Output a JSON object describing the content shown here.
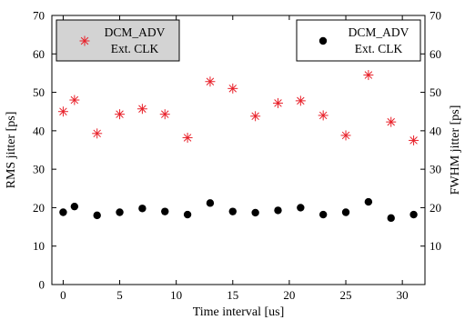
{
  "chart_data": {
    "type": "scatter",
    "xlabel": "Time interval [us]",
    "ylabel_left": "RMS jitter [ps]",
    "ylabel_right": "FWHM jitter [ps]",
    "xlim": [
      -1,
      32
    ],
    "ylim": [
      0,
      70
    ],
    "xticks": [
      0,
      5,
      10,
      15,
      20,
      25,
      30
    ],
    "yticks": [
      0,
      10,
      20,
      30,
      40,
      50,
      60,
      70
    ],
    "yticks_right": [
      10,
      20,
      30,
      40,
      50,
      60,
      70
    ],
    "grid": false,
    "series": [
      {
        "name_line1": "DCM_ADV",
        "name_line2": "Ext. CLK",
        "axis": "right",
        "marker": "asterisk",
        "color": "#e8212a",
        "legend_position": "top-left",
        "legend_fill": "#d3d3d3",
        "x": [
          0,
          1,
          3,
          5,
          7,
          9,
          11,
          13,
          15,
          17,
          19,
          21,
          23,
          25,
          27,
          29,
          31
        ],
        "y": [
          45,
          48,
          39.3,
          44.3,
          45.7,
          44.3,
          38.2,
          52.8,
          51,
          43.8,
          47.2,
          47.8,
          44,
          38.8,
          54.5,
          42.3,
          37.5
        ]
      },
      {
        "name_line1": "DCM_ADV",
        "name_line2": "Ext. CLK",
        "axis": "left",
        "marker": "circle",
        "color": "#000000",
        "legend_position": "top-right",
        "legend_fill": "#ffffff",
        "x": [
          0,
          1,
          3,
          5,
          7,
          9,
          11,
          13,
          15,
          17,
          19,
          21,
          23,
          25,
          27,
          29,
          31
        ],
        "y": [
          18.8,
          20.3,
          18,
          18.8,
          19.8,
          19,
          18.2,
          21.2,
          19,
          18.7,
          19.3,
          20,
          18.2,
          18.8,
          21.5,
          17.3,
          18.2
        ]
      }
    ]
  }
}
